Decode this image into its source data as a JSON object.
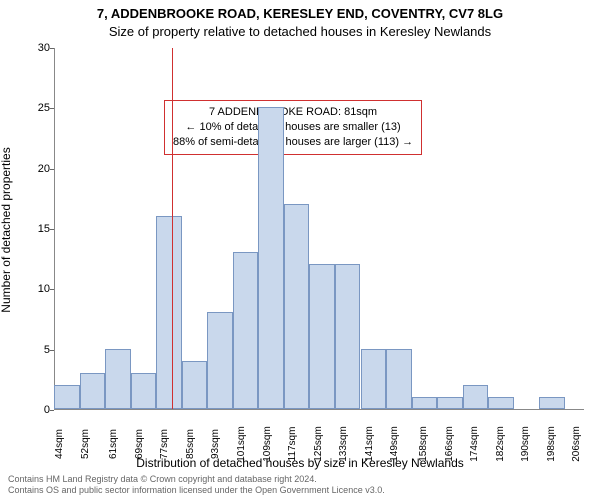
{
  "header": {
    "line1": "7, ADDENBROOKE ROAD, KERESLEY END, COVENTRY, CV7 8LG",
    "line2": "Size of property relative to detached houses in Keresley Newlands"
  },
  "chart": {
    "type": "histogram",
    "background_color": "#ffffff",
    "bar_fill": "#c9d8ec",
    "bar_border": "#7a97c2",
    "marker_color": "#d03030",
    "marker_x": 81,
    "xlabel": "Distribution of detached houses by size in Keresley Newlands",
    "ylabel": "Number of detached properties",
    "ylim": [
      0,
      30
    ],
    "ytick_step": 5,
    "yticks": [
      0,
      5,
      10,
      15,
      20,
      25,
      30
    ],
    "xlim": [
      44,
      210
    ],
    "bar_width_sqm": 8,
    "label_fontsize": 12,
    "tick_fontsize": 10,
    "xticks": [
      44,
      52,
      61,
      69,
      77,
      85,
      93,
      101,
      109,
      117,
      125,
      133,
      141,
      149,
      158,
      166,
      174,
      182,
      190,
      198,
      206
    ],
    "xtick_suffix": "sqm",
    "bars": [
      {
        "x": 44,
        "y": 2
      },
      {
        "x": 52,
        "y": 3
      },
      {
        "x": 60,
        "y": 5
      },
      {
        "x": 68,
        "y": 3
      },
      {
        "x": 76,
        "y": 16
      },
      {
        "x": 84,
        "y": 4
      },
      {
        "x": 92,
        "y": 8
      },
      {
        "x": 100,
        "y": 13
      },
      {
        "x": 108,
        "y": 25
      },
      {
        "x": 116,
        "y": 17
      },
      {
        "x": 124,
        "y": 12
      },
      {
        "x": 132,
        "y": 12
      },
      {
        "x": 140,
        "y": 5
      },
      {
        "x": 148,
        "y": 5
      },
      {
        "x": 156,
        "y": 1
      },
      {
        "x": 164,
        "y": 1
      },
      {
        "x": 172,
        "y": 2
      },
      {
        "x": 180,
        "y": 1
      },
      {
        "x": 196,
        "y": 1
      }
    ],
    "annotation": {
      "line1": "7 ADDENBROOKE ROAD: 81sqm",
      "line2": "← 10% of detached houses are smaller (13)",
      "line3": "88% of semi-detached houses are larger (113) →"
    }
  },
  "footer": {
    "line1": "Contains HM Land Registry data © Crown copyright and database right 2024.",
    "line2": "Contains OS and public sector information licensed under the Open Government Licence v3.0."
  }
}
